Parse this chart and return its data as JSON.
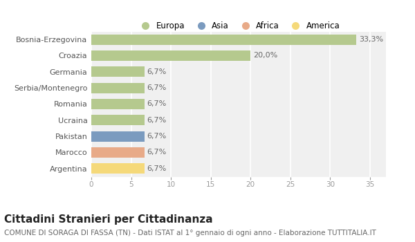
{
  "categories": [
    "Bosnia-Erzegovina",
    "Croazia",
    "Germania",
    "Serbia/Montenegro",
    "Romania",
    "Ucraina",
    "Pakistan",
    "Marocco",
    "Argentina"
  ],
  "values": [
    33.3,
    20.0,
    6.7,
    6.7,
    6.7,
    6.7,
    6.7,
    6.7,
    6.7
  ],
  "colors": [
    "#b5c98e",
    "#b5c98e",
    "#b5c98e",
    "#b5c98e",
    "#b5c98e",
    "#b5c98e",
    "#7b9bbf",
    "#e8aa88",
    "#f5d97a"
  ],
  "labels": [
    "33,3%",
    "20,0%",
    "6,7%",
    "6,7%",
    "6,7%",
    "6,7%",
    "6,7%",
    "6,7%",
    "6,7%"
  ],
  "legend_labels": [
    "Europa",
    "Asia",
    "Africa",
    "America"
  ],
  "legend_colors": [
    "#b5c98e",
    "#7b9bbf",
    "#e8aa88",
    "#f5d97a"
  ],
  "title": "Cittadini Stranieri per Cittadinanza",
  "subtitle": "COMUNE DI SORAGA DI FASSA (TN) - Dati ISTAT al 1° gennaio di ogni anno - Elaborazione TUTTITALIA.IT",
  "xlim": [
    0,
    37
  ],
  "xticks": [
    0,
    5,
    10,
    15,
    20,
    25,
    30,
    35
  ],
  "background_color": "#ffffff",
  "plot_bg_color": "#f0f0f0",
  "grid_color": "#ffffff",
  "bar_height": 0.65,
  "label_fontsize": 8,
  "title_fontsize": 11,
  "subtitle_fontsize": 7.5
}
